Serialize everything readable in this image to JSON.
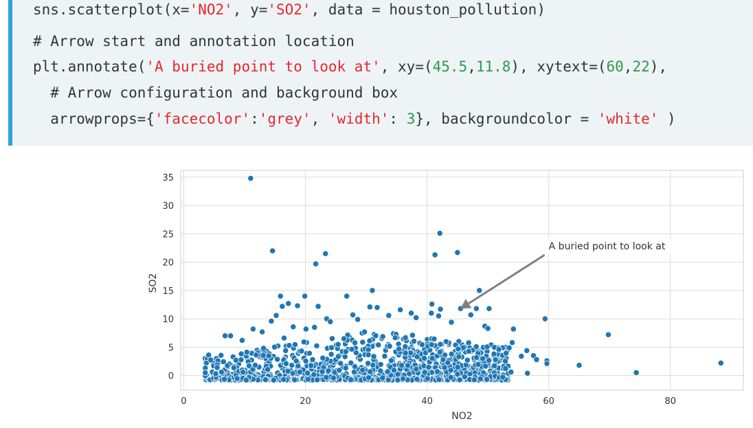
{
  "code": {
    "line1": {
      "a": "sns.scatterplot(x=",
      "s1": "'NO2'",
      "b": ", y=",
      "s2": "'SO2'",
      "c": ", data = houston_pollution)"
    },
    "line2": {
      "comment": "# Arrow start and annotation location"
    },
    "line3": {
      "a": "plt.annotate(",
      "s1": "'A buried point to look at'",
      "b": ", xy=(",
      "n1": "45.5",
      "c": ",",
      "n2": "11.8",
      "d": "), xytext=(",
      "n3": "60",
      "e": ",",
      "n4": "22",
      "f": "),"
    },
    "line4": {
      "comment": "  # Arrow configuration and background box"
    },
    "line5": {
      "a": "  arrowprops={",
      "s1": "'facecolor'",
      "b": ":",
      "s2": "'grey'",
      "c": ", ",
      "s3": "'width'",
      "d": ": ",
      "n1": "3",
      "e": "}, backgroundcolor = ",
      "s4": "'white'",
      "f": " )"
    }
  },
  "colors": {
    "accent_bar": "#2ea4d8",
    "code_bg": "#eef4f6",
    "string": "#e8262b",
    "number": "#2b9a45",
    "point": "#1f77b4",
    "arrow": "#808080"
  },
  "chart_data": {
    "type": "scatter",
    "xlabel": "NO2",
    "ylabel": "SO2",
    "xlim": [
      -0.5,
      92
    ],
    "ylim": [
      -2.6,
      36.2
    ],
    "xticks": [
      0,
      20,
      40,
      60,
      80
    ],
    "yticks": [
      0,
      5,
      10,
      15,
      20,
      25,
      30,
      35
    ],
    "grid": true,
    "annotation": {
      "text": "A buried point to look at",
      "xy": [
        45.5,
        11.8
      ],
      "xytext": [
        60,
        22
      ]
    },
    "points": [
      [
        11.0,
        34.8
      ],
      [
        14.6,
        22.0
      ],
      [
        21.7,
        19.7
      ],
      [
        23.3,
        21.5
      ],
      [
        42.1,
        25.1
      ],
      [
        41.3,
        21.3
      ],
      [
        45.0,
        21.7
      ],
      [
        31.0,
        15.0
      ],
      [
        15.9,
        14.0
      ],
      [
        17.2,
        12.7
      ],
      [
        18.7,
        12.3
      ],
      [
        19.9,
        14.0
      ],
      [
        16.2,
        12.2
      ],
      [
        22.1,
        12.2
      ],
      [
        26.8,
        14.0
      ],
      [
        30.6,
        12.1
      ],
      [
        31.8,
        12.0
      ],
      [
        40.8,
        12.6
      ],
      [
        42.2,
        11.7
      ],
      [
        45.5,
        11.8
      ],
      [
        48.6,
        15.0
      ],
      [
        50.2,
        11.8
      ],
      [
        59.4,
        10.0
      ],
      [
        69.8,
        7.2
      ],
      [
        65.0,
        1.8
      ],
      [
        74.4,
        0.5
      ],
      [
        88.3,
        2.2
      ],
      [
        59.7,
        2.6
      ],
      [
        59.7,
        2.1
      ],
      [
        56.5,
        0.4
      ],
      [
        53.8,
        0.6
      ],
      [
        6.8,
        7.0
      ],
      [
        7.7,
        7.0
      ],
      [
        9.6,
        6.2
      ],
      [
        11.4,
        8.2
      ],
      [
        12.9,
        7.7
      ],
      [
        15.2,
        10.6
      ],
      [
        14.4,
        9.6
      ],
      [
        16.5,
        6.6
      ],
      [
        18.0,
        8.6
      ],
      [
        20.1,
        8.2
      ],
      [
        21.5,
        8.5
      ],
      [
        23.5,
        10.0
      ],
      [
        24.1,
        9.5
      ],
      [
        27.8,
        10.7
      ],
      [
        28.6,
        9.9
      ],
      [
        33.7,
        10.6
      ],
      [
        35.6,
        11.6
      ],
      [
        37.4,
        11.0
      ],
      [
        38.2,
        10.2
      ],
      [
        40.7,
        11.0
      ],
      [
        41.9,
        10.5
      ],
      [
        44.0,
        9.4
      ],
      [
        47.2,
        10.7
      ],
      [
        48.1,
        11.8
      ],
      [
        49.5,
        8.7
      ],
      [
        50.0,
        8.3
      ],
      [
        51.8,
        4.6
      ],
      [
        54.2,
        8.2
      ],
      [
        54.0,
        5.8
      ],
      [
        55.5,
        3.4
      ],
      [
        56.4,
        4.4
      ],
      [
        57.5,
        3.5
      ],
      [
        58.0,
        2.8
      ]
    ]
  }
}
